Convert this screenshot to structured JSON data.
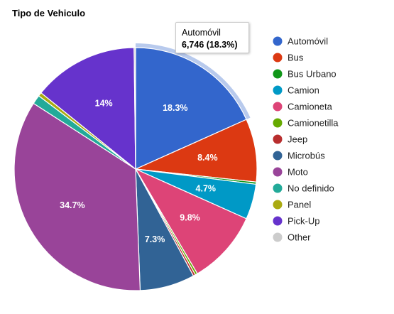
{
  "chart_data": {
    "type": "pie",
    "title": "Tipo de Vehiculo",
    "legend_position": "right",
    "slices": [
      {
        "name": "Automóvil",
        "percent": 18.3,
        "value": 6746,
        "color": "#3366cc",
        "label": "18.3%"
      },
      {
        "name": "Bus",
        "percent": 8.4,
        "color": "#dc3912",
        "label": "8.4%"
      },
      {
        "name": "Bus Urbano",
        "percent": 0.3,
        "color": "#109618",
        "label": ""
      },
      {
        "name": "Camion",
        "percent": 4.7,
        "color": "#0099c6",
        "label": "4.7%"
      },
      {
        "name": "Camioneta",
        "percent": 9.8,
        "color": "#dd4477",
        "label": "9.8%"
      },
      {
        "name": "Camionetilla",
        "percent": 0.3,
        "color": "#66aa00",
        "label": ""
      },
      {
        "name": "Jeep",
        "percent": 0.3,
        "color": "#b82e2e",
        "label": ""
      },
      {
        "name": "Microbús",
        "percent": 7.3,
        "color": "#316395",
        "label": "7.3%"
      },
      {
        "name": "Moto",
        "percent": 34.7,
        "color": "#994499",
        "label": "34.7%"
      },
      {
        "name": "No definido",
        "percent": 1.2,
        "color": "#22aa99",
        "label": ""
      },
      {
        "name": "Panel",
        "percent": 0.5,
        "color": "#aaaa11",
        "label": ""
      },
      {
        "name": "Pick-Up",
        "percent": 14.0,
        "color": "#6633cc",
        "label": "14%"
      },
      {
        "name": "Other",
        "percent": 0.2,
        "color": "#cccccc",
        "label": ""
      }
    ],
    "highlighted": "Automóvil",
    "tooltip": {
      "name": "Automóvil",
      "value_text": "6,746 (18.3%)"
    }
  }
}
